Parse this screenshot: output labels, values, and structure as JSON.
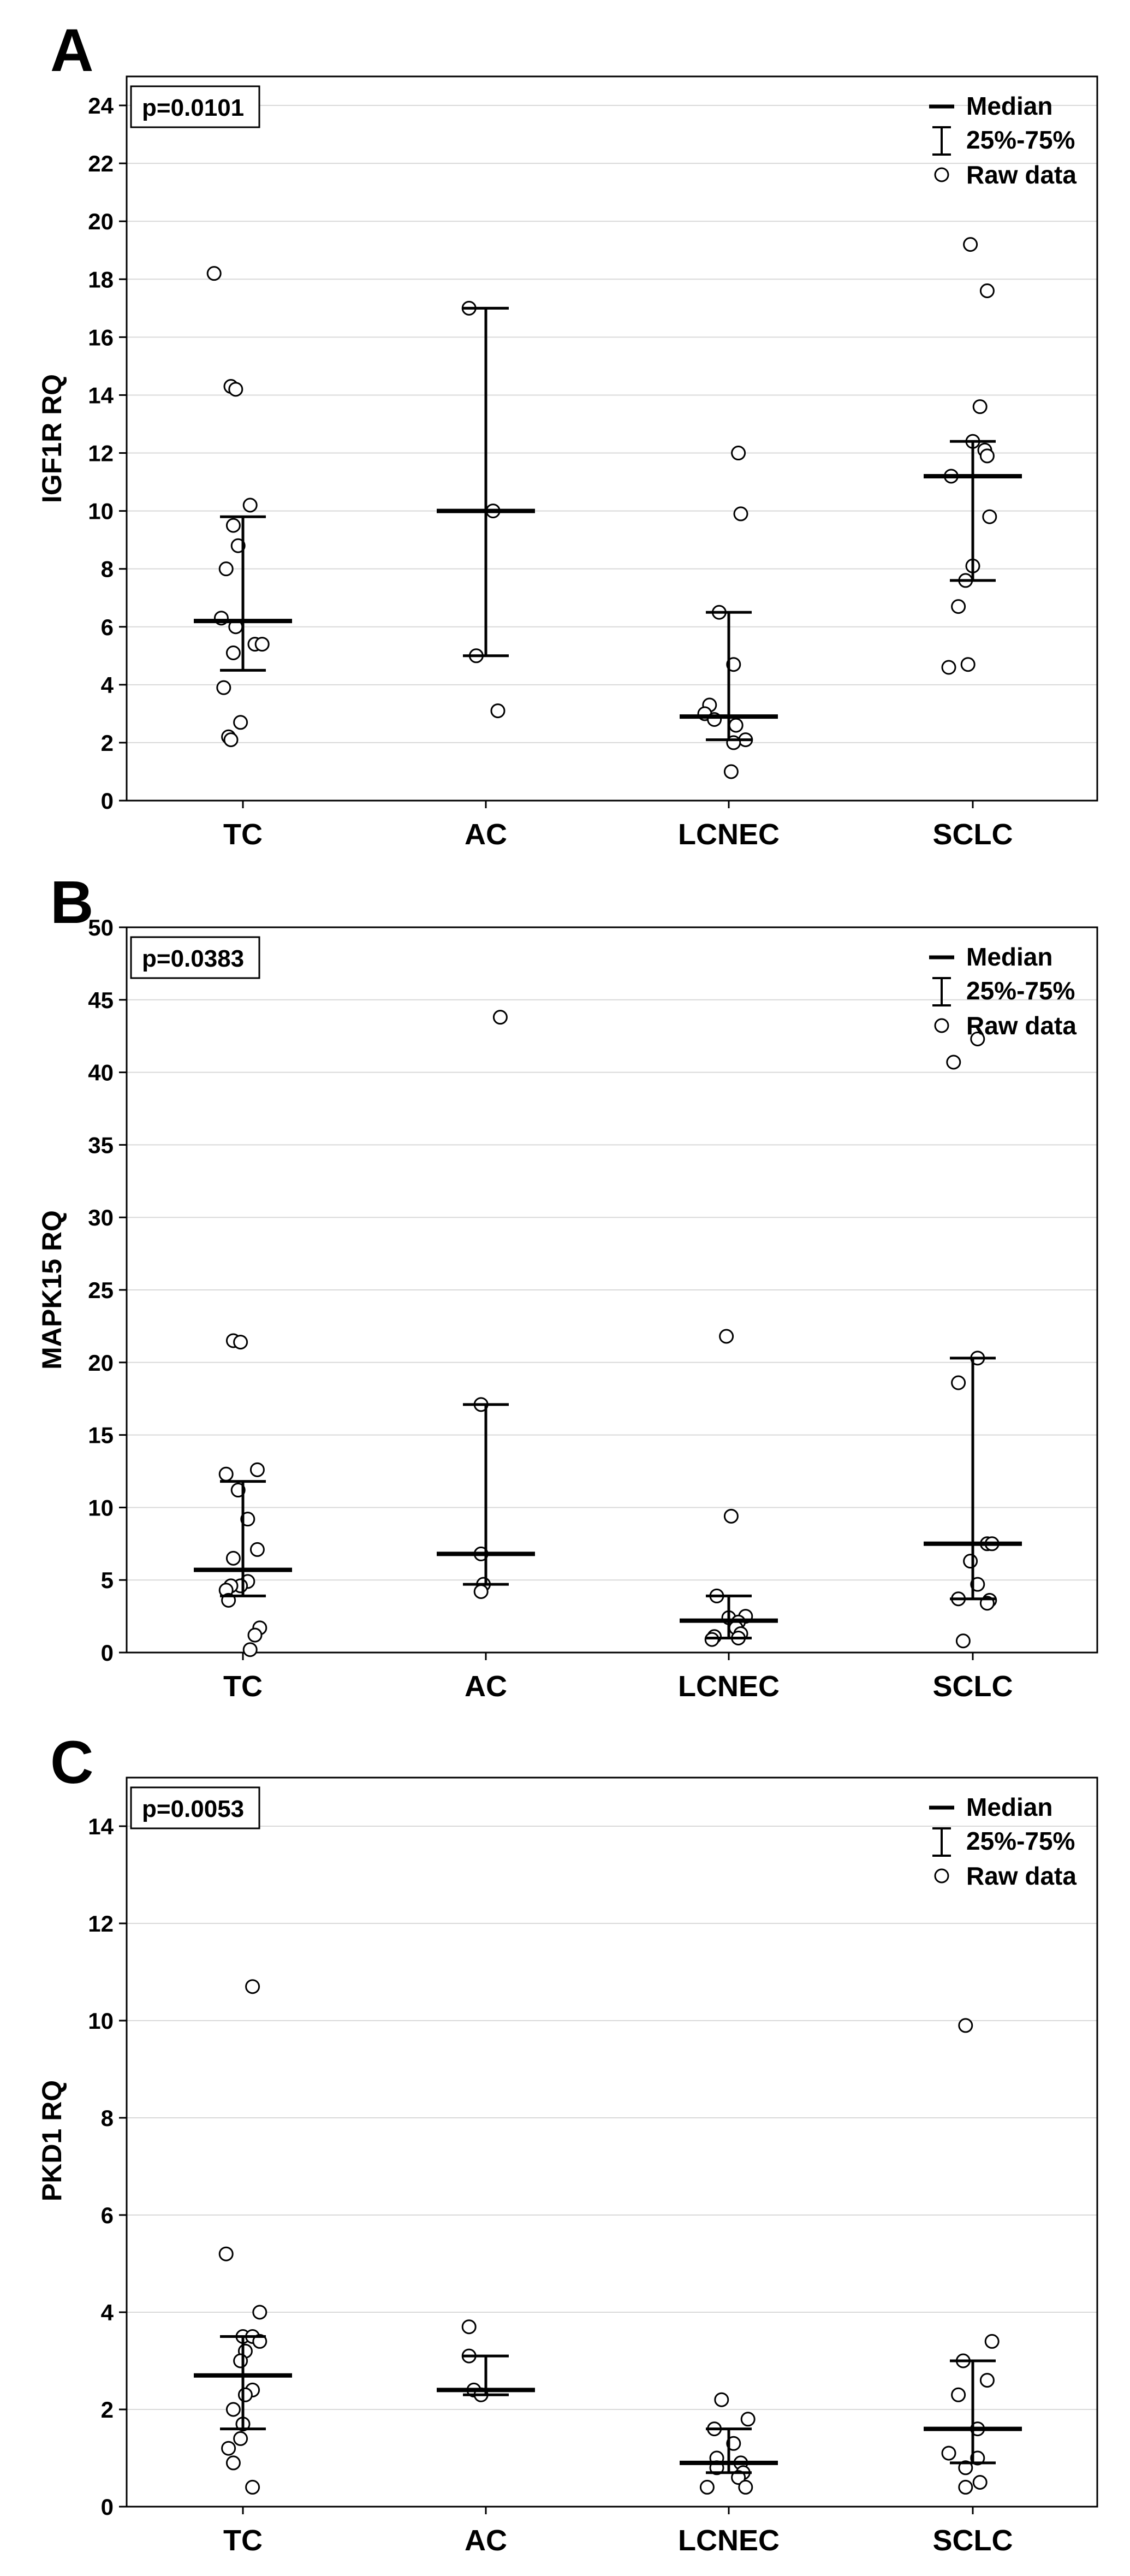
{
  "chart_data": [
    {
      "type": "scatter",
      "panel_letter": "A",
      "ylabel": "IGF1R RQ",
      "xlabel": "",
      "ylim": [
        0,
        25
      ],
      "yticks": [
        0,
        2,
        4,
        6,
        8,
        10,
        12,
        14,
        16,
        18,
        20,
        22,
        24
      ],
      "grid": true,
      "p_value": "p=0.0101",
      "legend": {
        "median": "Median",
        "iqr": "25%-75%",
        "raw": "Raw data",
        "position": "top-right"
      },
      "categories": [
        "TC",
        "AC",
        "LCNEC",
        "SCLC"
      ],
      "groups": [
        {
          "name": "TC",
          "median": 6.2,
          "q1": 4.5,
          "q3": 9.8,
          "points": [
            [
              -0.12,
              18.2
            ],
            [
              -0.05,
              14.3
            ],
            [
              -0.03,
              14.2
            ],
            [
              0.03,
              10.2
            ],
            [
              -0.04,
              9.5
            ],
            [
              -0.02,
              8.8
            ],
            [
              -0.07,
              8.0
            ],
            [
              -0.09,
              6.3
            ],
            [
              -0.03,
              6.0
            ],
            [
              0.05,
              5.4
            ],
            [
              0.08,
              5.4
            ],
            [
              -0.04,
              5.1
            ],
            [
              -0.08,
              3.9
            ],
            [
              -0.01,
              2.7
            ],
            [
              -0.06,
              2.2
            ],
            [
              -0.05,
              2.1
            ]
          ]
        },
        {
          "name": "AC",
          "median": 10.0,
          "q1": 5.0,
          "q3": 17.0,
          "points": [
            [
              -0.07,
              17.0
            ],
            [
              0.03,
              10.0
            ],
            [
              -0.04,
              5.0
            ],
            [
              0.05,
              3.1
            ]
          ]
        },
        {
          "name": "LCNEC",
          "median": 2.9,
          "q1": 2.1,
          "q3": 6.5,
          "points": [
            [
              0.04,
              12.0
            ],
            [
              0.05,
              9.9
            ],
            [
              -0.04,
              6.5
            ],
            [
              0.02,
              4.7
            ],
            [
              -0.08,
              3.3
            ],
            [
              -0.1,
              3.0
            ],
            [
              -0.06,
              2.8
            ],
            [
              0.03,
              2.6
            ],
            [
              0.07,
              2.1
            ],
            [
              0.02,
              2.0
            ],
            [
              0.01,
              1.0
            ]
          ]
        },
        {
          "name": "SCLC",
          "median": 11.2,
          "q1": 7.6,
          "q3": 12.4,
          "points": [
            [
              -0.01,
              19.2
            ],
            [
              0.06,
              17.6
            ],
            [
              0.03,
              13.6
            ],
            [
              0.0,
              12.4
            ],
            [
              0.05,
              12.1
            ],
            [
              0.06,
              11.9
            ],
            [
              -0.09,
              11.2
            ],
            [
              0.07,
              9.8
            ],
            [
              0.0,
              8.1
            ],
            [
              -0.03,
              7.6
            ],
            [
              -0.06,
              6.7
            ],
            [
              -0.1,
              4.6
            ],
            [
              -0.02,
              4.7
            ]
          ]
        }
      ]
    },
    {
      "type": "scatter",
      "panel_letter": "B",
      "ylabel": "MAPK15 RQ",
      "xlabel": "",
      "ylim": [
        0,
        50
      ],
      "yticks": [
        0,
        5,
        10,
        15,
        20,
        25,
        30,
        35,
        40,
        45,
        50
      ],
      "grid": true,
      "p_value": "p=0.0383",
      "legend": {
        "median": "Median",
        "iqr": "25%-75%",
        "raw": "Raw data",
        "position": "top-right"
      },
      "categories": [
        "TC",
        "AC",
        "LCNEC",
        "SCLC"
      ],
      "groups": [
        {
          "name": "TC",
          "median": 5.7,
          "q1": 3.9,
          "q3": 11.8,
          "points": [
            [
              -0.04,
              21.5
            ],
            [
              -0.01,
              21.4
            ],
            [
              0.06,
              12.6
            ],
            [
              -0.07,
              12.3
            ],
            [
              -0.02,
              11.2
            ],
            [
              0.02,
              9.2
            ],
            [
              0.06,
              7.1
            ],
            [
              -0.04,
              6.5
            ],
            [
              0.02,
              4.9
            ],
            [
              -0.01,
              4.6
            ],
            [
              -0.05,
              4.6
            ],
            [
              -0.07,
              4.3
            ],
            [
              -0.06,
              3.6
            ],
            [
              0.07,
              1.7
            ],
            [
              0.05,
              1.2
            ],
            [
              0.03,
              0.2
            ]
          ]
        },
        {
          "name": "AC",
          "median": 6.8,
          "q1": 4.7,
          "q3": 17.1,
          "points": [
            [
              0.06,
              43.8
            ],
            [
              -0.02,
              17.1
            ],
            [
              -0.02,
              6.8
            ],
            [
              -0.01,
              4.7
            ],
            [
              -0.02,
              4.2
            ]
          ]
        },
        {
          "name": "LCNEC",
          "median": 2.2,
          "q1": 1.0,
          "q3": 3.9,
          "points": [
            [
              -0.01,
              21.8
            ],
            [
              0.01,
              9.4
            ],
            [
              -0.05,
              3.9
            ],
            [
              0.07,
              2.5
            ],
            [
              0.0,
              2.4
            ],
            [
              0.04,
              2.1
            ],
            [
              0.03,
              1.7
            ],
            [
              0.05,
              1.3
            ],
            [
              -0.06,
              1.1
            ],
            [
              -0.07,
              0.9
            ],
            [
              0.04,
              1.0
            ]
          ]
        },
        {
          "name": "SCLC",
          "median": 7.5,
          "q1": 3.7,
          "q3": 20.3,
          "points": [
            [
              0.02,
              42.3
            ],
            [
              -0.08,
              40.7
            ],
            [
              0.02,
              20.3
            ],
            [
              -0.06,
              18.6
            ],
            [
              0.06,
              7.5
            ],
            [
              0.08,
              7.5
            ],
            [
              -0.01,
              6.3
            ],
            [
              0.02,
              4.7
            ],
            [
              -0.06,
              3.7
            ],
            [
              0.07,
              3.6
            ],
            [
              0.06,
              3.4
            ],
            [
              -0.04,
              0.8
            ]
          ]
        }
      ]
    },
    {
      "type": "scatter",
      "panel_letter": "C",
      "ylabel": "PKD1 RQ",
      "xlabel": "",
      "ylim": [
        0,
        15
      ],
      "yticks": [
        0,
        2,
        4,
        6,
        8,
        10,
        12,
        14
      ],
      "grid": true,
      "p_value": "p=0.0053",
      "legend": {
        "median": "Median",
        "iqr": "25%-75%",
        "raw": "Raw data",
        "position": "top-right"
      },
      "categories": [
        "TC",
        "AC",
        "LCNEC",
        "SCLC"
      ],
      "groups": [
        {
          "name": "TC",
          "median": 2.7,
          "q1": 1.6,
          "q3": 3.5,
          "points": [
            [
              0.04,
              10.7
            ],
            [
              -0.07,
              5.2
            ],
            [
              0.07,
              4.0
            ],
            [
              0.0,
              3.5
            ],
            [
              0.04,
              3.5
            ],
            [
              0.07,
              3.4
            ],
            [
              0.01,
              3.2
            ],
            [
              -0.01,
              3.0
            ],
            [
              0.04,
              2.4
            ],
            [
              0.01,
              2.3
            ],
            [
              -0.04,
              2.0
            ],
            [
              0.0,
              1.7
            ],
            [
              -0.01,
              1.4
            ],
            [
              -0.06,
              1.2
            ],
            [
              -0.04,
              0.9
            ],
            [
              0.04,
              0.4
            ]
          ]
        },
        {
          "name": "AC",
          "median": 2.4,
          "q1": 2.3,
          "q3": 3.1,
          "points": [
            [
              -0.07,
              3.7
            ],
            [
              -0.07,
              3.1
            ],
            [
              -0.05,
              2.4
            ],
            [
              -0.02,
              2.3
            ]
          ]
        },
        {
          "name": "LCNEC",
          "median": 0.9,
          "q1": 0.7,
          "q3": 1.6,
          "points": [
            [
              -0.03,
              2.2
            ],
            [
              0.08,
              1.8
            ],
            [
              -0.06,
              1.6
            ],
            [
              0.02,
              1.3
            ],
            [
              -0.05,
              1.0
            ],
            [
              0.05,
              0.9
            ],
            [
              0.06,
              0.7
            ],
            [
              0.04,
              0.6
            ],
            [
              -0.05,
              0.8
            ],
            [
              -0.09,
              0.4
            ],
            [
              0.07,
              0.4
            ]
          ]
        },
        {
          "name": "SCLC",
          "median": 1.6,
          "q1": 0.9,
          "q3": 3.0,
          "points": [
            [
              -0.03,
              9.9
            ],
            [
              0.08,
              3.4
            ],
            [
              -0.04,
              3.0
            ],
            [
              0.06,
              2.6
            ],
            [
              -0.06,
              2.3
            ],
            [
              0.02,
              1.6
            ],
            [
              -0.1,
              1.1
            ],
            [
              0.02,
              1.0
            ],
            [
              -0.03,
              0.8
            ],
            [
              0.03,
              0.5
            ],
            [
              -0.03,
              0.4
            ]
          ]
        }
      ]
    }
  ]
}
